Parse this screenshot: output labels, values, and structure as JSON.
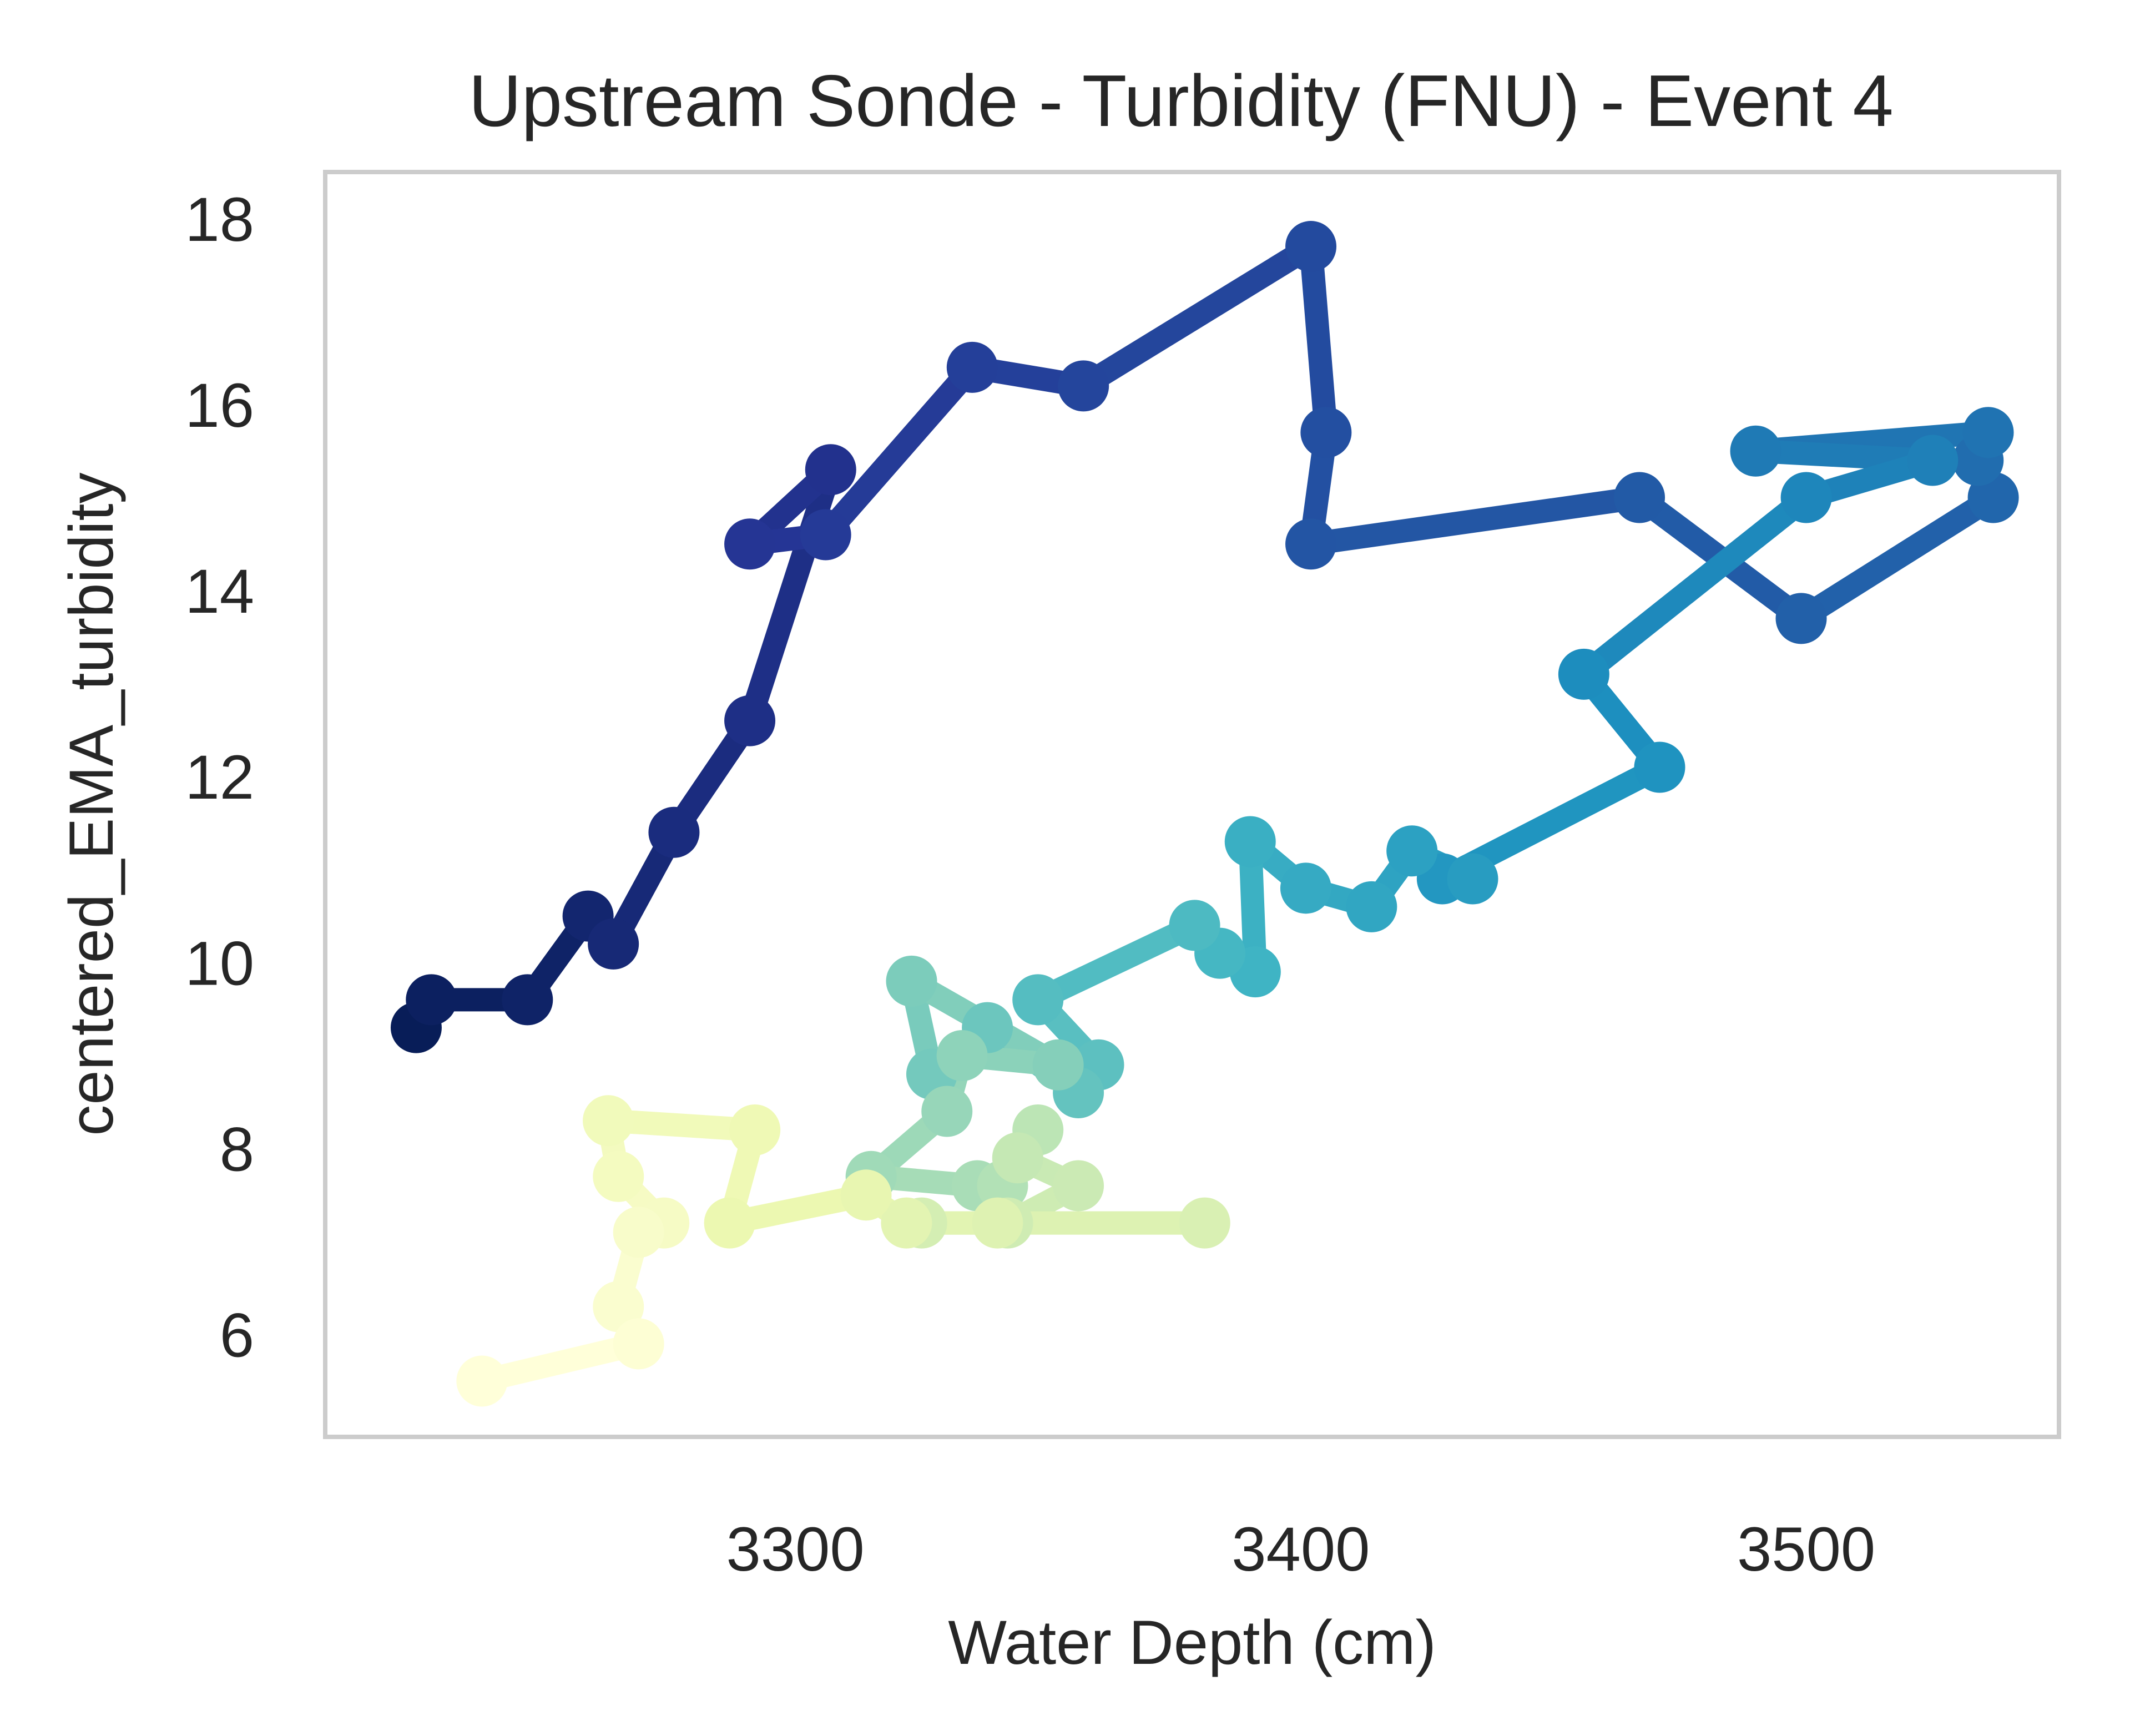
{
  "chart_data": {
    "type": "line",
    "title": "Upstream Sonde - Turbidity (FNU) - Event 4",
    "xlabel": "Water Depth (cm)",
    "ylabel": "centered_EMA_turbidity",
    "xlim": [
      3207,
      3550
    ],
    "ylim": [
      4.9,
      18.5
    ],
    "xticks": [
      3300,
      3400,
      3500
    ],
    "yticks": [
      6,
      8,
      10,
      12,
      14,
      16,
      18
    ],
    "grid": false,
    "colormap": "YlGnBu (dark navy at start, pale yellow at end)",
    "colormap_stops": [
      "#081d58",
      "#253494",
      "#225ea8",
      "#1d91c0",
      "#41b6c4",
      "#7fcdbb",
      "#c7e9b4",
      "#edf8b1",
      "#ffffd9"
    ],
    "series": [
      {
        "x": [
          3225,
          3228,
          3247,
          3259,
          3264,
          3276,
          3291,
          3307,
          3291,
          3306,
          3335,
          3357,
          3402,
          3405,
          3402,
          3467,
          3499,
          3537,
          3534,
          3536,
          3490,
          3525,
          3500,
          3456,
          3471,
          3428,
          3434,
          3422,
          3414,
          3401,
          3390,
          3391,
          3384,
          3379,
          3348,
          3360,
          3356,
          3338,
          3327,
          3323,
          3352,
          3333,
          3330,
          3315,
          3336,
          3341,
          3348,
          3344,
          3356,
          3342,
          3325,
          3381,
          3340,
          3322,
          3314,
          3287,
          3292,
          3263,
          3265,
          3274,
          3269,
          3265,
          3269,
          3238
        ],
        "y": [
          9.3,
          9.6,
          9.6,
          10.5,
          10.2,
          11.4,
          12.6,
          15.3,
          14.5,
          14.6,
          16.4,
          16.2,
          17.7,
          15.7,
          14.5,
          15.0,
          13.7,
          15.0,
          15.4,
          15.7,
          15.5,
          15.4,
          15.0,
          13.1,
          12.1,
          10.9,
          10.9,
          11.2,
          10.6,
          10.8,
          11.3,
          9.9,
          10.1,
          10.4,
          9.6,
          8.9,
          8.6,
          9.3,
          8.8,
          9.8,
          8.9,
          9.0,
          8.4,
          7.7,
          7.6,
          7.6,
          8.2,
          7.9,
          7.6,
          7.2,
          7.2,
          7.2,
          7.2,
          7.2,
          7.5,
          7.2,
          8.2,
          8.3,
          7.7,
          7.2,
          7.1,
          6.3,
          5.9,
          5.5
        ]
      }
    ]
  }
}
